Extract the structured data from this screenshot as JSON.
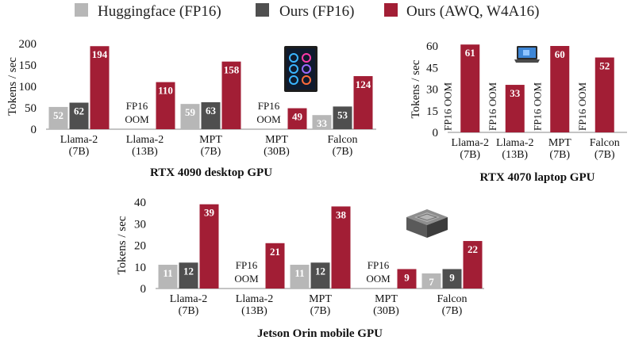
{
  "colors": {
    "Huggingface (FP16)": "#b7b7b7",
    "Ours (FP16)": "#4f4f4f",
    "Ours (AWQ, W4A16)": "#a21e35"
  },
  "legend": [
    "Huggingface (FP16)",
    "Ours (FP16)",
    "Ours (AWQ, W4A16)"
  ],
  "chart_data": [
    {
      "type": "bar",
      "title": "RTX 4090 desktop GPU",
      "ylabel": "Tokens / sec",
      "ylim": [
        0,
        200
      ],
      "yticks": [
        0,
        50,
        100,
        150,
        200
      ],
      "categories": [
        [
          "Llama-2",
          "(7B)"
        ],
        [
          "Llama-2",
          "(13B)"
        ],
        [
          "MPT",
          "(7B)"
        ],
        [
          "MPT",
          "(30B)"
        ],
        [
          "Falcon",
          "(7B)"
        ]
      ],
      "series": [
        {
          "name": "Huggingface (FP16)",
          "values": [
            52,
            null,
            59,
            null,
            33
          ]
        },
        {
          "name": "Ours (FP16)",
          "values": [
            62,
            null,
            63,
            null,
            53
          ]
        },
        {
          "name": "Ours (AWQ, W4A16)",
          "values": [
            194,
            110,
            158,
            49,
            124
          ]
        }
      ],
      "oom_labels": [
        null,
        "FP16 OOM",
        null,
        "FP16 OOM",
        null
      ],
      "oom_style": "horizontal",
      "icon": "desktop-pc-icon"
    },
    {
      "type": "bar",
      "title": "RTX 4070 laptop GPU",
      "ylabel": "Tokens / sec",
      "ylim": [
        0,
        60
      ],
      "yticks": [
        0,
        15,
        30,
        45,
        60
      ],
      "categories": [
        [
          "Llama-2",
          "(7B)"
        ],
        [
          "Llama-2",
          "(13B)"
        ],
        [
          "MPT",
          "(7B)"
        ],
        [
          "Falcon",
          "(7B)"
        ]
      ],
      "series": [
        {
          "name": "Ours (AWQ, W4A16)",
          "values": [
            61,
            33,
            60,
            52
          ]
        }
      ],
      "oom_labels": [
        "FP16 OOM",
        "FP16 OOM",
        "FP16 OOM",
        "FP16 OOM"
      ],
      "oom_style": "vertical",
      "icon": "laptop-icon"
    },
    {
      "type": "bar",
      "title": "Jetson Orin mobile GPU",
      "ylabel": "Tokens / sec",
      "ylim": [
        0,
        40
      ],
      "yticks": [
        0,
        10,
        20,
        30,
        40
      ],
      "categories": [
        [
          "Llama-2",
          "(7B)"
        ],
        [
          "Llama-2",
          "(13B)"
        ],
        [
          "MPT",
          "(7B)"
        ],
        [
          "MPT",
          "(30B)"
        ],
        [
          "Falcon",
          "(7B)"
        ]
      ],
      "series": [
        {
          "name": "Huggingface (FP16)",
          "values": [
            11,
            null,
            11,
            null,
            7
          ]
        },
        {
          "name": "Ours (FP16)",
          "values": [
            12,
            null,
            12,
            null,
            9
          ]
        },
        {
          "name": "Ours (AWQ, W4A16)",
          "values": [
            39,
            21,
            38,
            9,
            22
          ]
        }
      ],
      "oom_labels": [
        null,
        "FP16 OOM",
        null,
        "FP16 OOM",
        null
      ],
      "oom_style": "horizontal",
      "icon": "jetson-module-icon"
    }
  ]
}
